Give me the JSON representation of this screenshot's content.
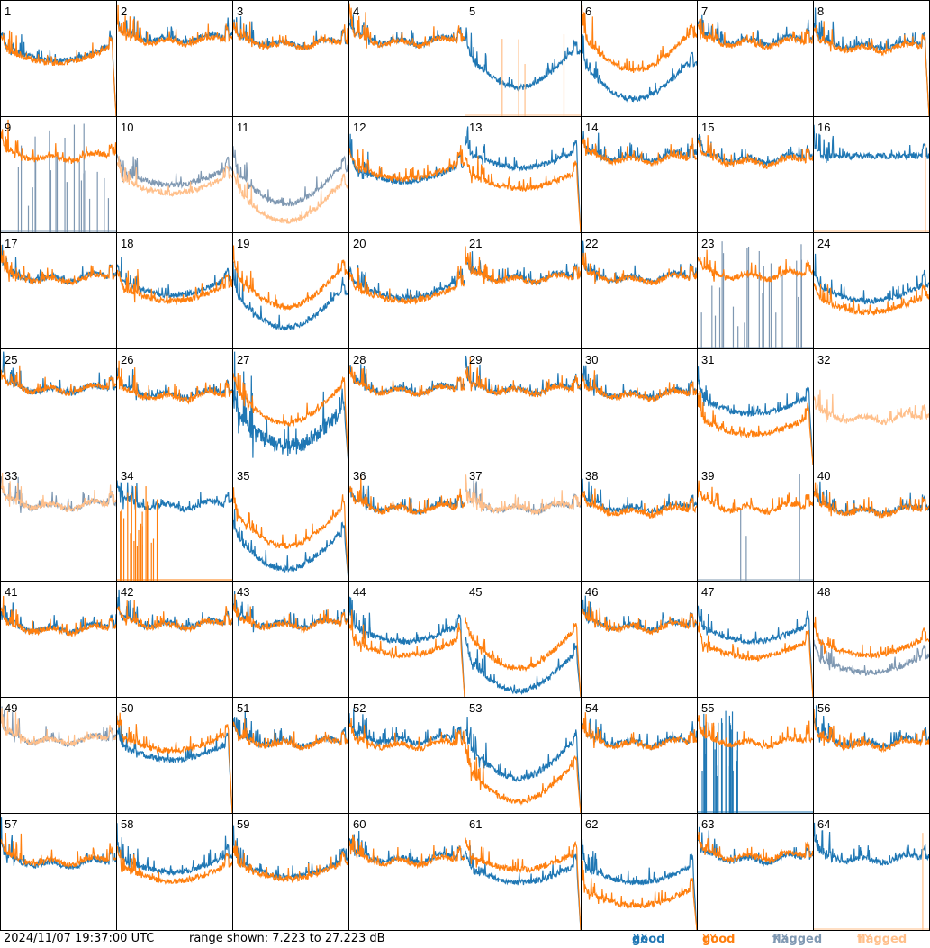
{
  "colors": {
    "good_xx": "#1f77b4",
    "good_yy": "#ff7f0e",
    "flagged_xx": "#7f98b2",
    "flagged_yy": "#ffbf8a",
    "background": "#ffffff",
    "grid_line": "#000000"
  },
  "footer": {
    "timestamp": "2024/11/07 19:37:00 UTC",
    "range_text": "range shown: 7.223 to 27.223 dB"
  },
  "legend": {
    "good": "good",
    "flagged": "flagged",
    "xx": "XX",
    "yy": "YY"
  },
  "chart_data": {
    "type": "line",
    "layout": "8x8 small multiples",
    "range_db": [
      7.223,
      27.223
    ],
    "xlabel": "",
    "ylabel": "",
    "grid": true,
    "series_keys": [
      "XX",
      "YY"
    ],
    "panels": [
      {
        "id": "1",
        "status": "good",
        "shape": "dip",
        "xx_level": 0.62,
        "yy_level": 0.6,
        "end_drop": true
      },
      {
        "id": "2",
        "status": "good",
        "shape": "wavy",
        "xx_level": 0.72,
        "yy_level": 0.7
      },
      {
        "id": "3",
        "status": "good",
        "shape": "wavy",
        "xx_level": 0.68,
        "yy_level": 0.67
      },
      {
        "id": "4",
        "status": "good",
        "shape": "wavy",
        "xx_level": 0.7,
        "yy_level": 0.69
      },
      {
        "id": "5",
        "status": "yy_flagged_spikes",
        "shape": "dip_deep",
        "xx_level": 0.55,
        "yy_level": 0.0
      },
      {
        "id": "6",
        "status": "good",
        "shape": "dip_deep",
        "xx_level": 0.45,
        "yy_level": 0.7
      },
      {
        "id": "7",
        "status": "good",
        "shape": "wavy",
        "xx_level": 0.7,
        "yy_level": 0.68
      },
      {
        "id": "8",
        "status": "good",
        "shape": "wavy",
        "xx_level": 0.66,
        "yy_level": 0.64,
        "end_drop": true
      },
      {
        "id": "9",
        "status": "xx_flagged_spikes",
        "shape": "wavy",
        "xx_level": 0.0,
        "yy_level": 0.7
      },
      {
        "id": "10",
        "status": "flagged",
        "shape": "dip",
        "xx_level": 0.55,
        "yy_level": 0.48
      },
      {
        "id": "11",
        "status": "flagged",
        "shape": "dip_deep",
        "xx_level": 0.55,
        "yy_level": 0.4
      },
      {
        "id": "12",
        "status": "good",
        "shape": "dip",
        "xx_level": 0.58,
        "yy_level": 0.6
      },
      {
        "id": "13",
        "status": "good",
        "shape": "dip",
        "xx_level": 0.7,
        "yy_level": 0.52,
        "end_drop": true
      },
      {
        "id": "14",
        "status": "good",
        "shape": "wavy",
        "xx_level": 0.7,
        "yy_level": 0.68
      },
      {
        "id": "15",
        "status": "good",
        "shape": "wavy",
        "xx_level": 0.68,
        "yy_level": 0.66
      },
      {
        "id": "16",
        "status": "yy_flagged_spike",
        "shape": "flat",
        "xx_level": 0.66,
        "yy_level": 0.0
      },
      {
        "id": "17",
        "status": "good",
        "shape": "wavy",
        "xx_level": 0.66,
        "yy_level": 0.65
      },
      {
        "id": "18",
        "status": "good",
        "shape": "dip",
        "xx_level": 0.6,
        "yy_level": 0.55
      },
      {
        "id": "19",
        "status": "good",
        "shape": "dip_deep",
        "xx_level": 0.48,
        "yy_level": 0.66
      },
      {
        "id": "20",
        "status": "good",
        "shape": "dip",
        "xx_level": 0.58,
        "yy_level": 0.55
      },
      {
        "id": "21",
        "status": "good",
        "shape": "wavy",
        "xx_level": 0.66,
        "yy_level": 0.65
      },
      {
        "id": "22",
        "status": "good",
        "shape": "wavy",
        "xx_level": 0.66,
        "yy_level": 0.65
      },
      {
        "id": "23",
        "status": "xx_flagged_spikes",
        "shape": "wavy",
        "xx_level": 0.0,
        "yy_level": 0.68
      },
      {
        "id": "24",
        "status": "good",
        "shape": "dip",
        "xx_level": 0.55,
        "yy_level": 0.45
      },
      {
        "id": "25",
        "status": "good",
        "shape": "wavy",
        "xx_level": 0.7,
        "yy_level": 0.7
      },
      {
        "id": "26",
        "status": "good",
        "shape": "wavy",
        "xx_level": 0.66,
        "yy_level": 0.64
      },
      {
        "id": "27",
        "status": "xx_noisy",
        "shape": "dip_deep",
        "xx_level": 0.45,
        "yy_level": 0.66,
        "end_drop": true
      },
      {
        "id": "28",
        "status": "good",
        "shape": "wavy",
        "xx_level": 0.7,
        "yy_level": 0.69
      },
      {
        "id": "29",
        "status": "good",
        "shape": "wavy",
        "xx_level": 0.7,
        "yy_level": 0.69
      },
      {
        "id": "30",
        "status": "good",
        "shape": "wavy",
        "xx_level": 0.66,
        "yy_level": 0.65
      },
      {
        "id": "31",
        "status": "good",
        "shape": "dip",
        "xx_level": 0.58,
        "yy_level": 0.4,
        "end_drop": true
      },
      {
        "id": "32",
        "status": "flagged",
        "shape": "wavy",
        "xx_level": 0.0,
        "yy_level": 0.45
      },
      {
        "id": "33",
        "status": "flagged",
        "shape": "wavy",
        "xx_level": 0.7,
        "yy_level": 0.7
      },
      {
        "id": "34",
        "status": "yy_noisy",
        "shape": "wavy",
        "xx_level": 0.7,
        "yy_level": 0.0
      },
      {
        "id": "35",
        "status": "good",
        "shape": "dip_deep",
        "xx_level": 0.4,
        "yy_level": 0.6,
        "end_drop": true
      },
      {
        "id": "36",
        "status": "good",
        "shape": "wavy",
        "xx_level": 0.68,
        "yy_level": 0.67
      },
      {
        "id": "37",
        "status": "flagged",
        "shape": "wavy",
        "xx_level": 0.68,
        "yy_level": 0.68
      },
      {
        "id": "38",
        "status": "good",
        "shape": "wavy",
        "xx_level": 0.68,
        "yy_level": 0.65
      },
      {
        "id": "39",
        "status": "xx_flagged_spike",
        "shape": "wavy",
        "xx_level": 0.0,
        "yy_level": 0.68
      },
      {
        "id": "40",
        "status": "good",
        "shape": "wavy",
        "xx_level": 0.66,
        "yy_level": 0.65
      },
      {
        "id": "41",
        "status": "good",
        "shape": "wavy",
        "xx_level": 0.64,
        "yy_level": 0.63
      },
      {
        "id": "42",
        "status": "good",
        "shape": "wavy",
        "xx_level": 0.68,
        "yy_level": 0.67
      },
      {
        "id": "43",
        "status": "good",
        "shape": "wavy",
        "xx_level": 0.68,
        "yy_level": 0.67
      },
      {
        "id": "44",
        "status": "good",
        "shape": "dip",
        "xx_level": 0.62,
        "yy_level": 0.5,
        "end_drop": true
      },
      {
        "id": "45",
        "status": "good",
        "shape": "dip_deep",
        "xx_level": 0.35,
        "yy_level": 0.55,
        "end_drop": true
      },
      {
        "id": "46",
        "status": "good",
        "shape": "wavy",
        "xx_level": 0.66,
        "yy_level": 0.65
      },
      {
        "id": "47",
        "status": "good",
        "shape": "dip",
        "xx_level": 0.62,
        "yy_level": 0.48,
        "end_drop": true
      },
      {
        "id": "48",
        "status": "xx_flagged",
        "shape": "dip",
        "xx_level": 0.35,
        "yy_level": 0.5
      },
      {
        "id": "49",
        "status": "flagged",
        "shape": "wavy",
        "xx_level": 0.68,
        "yy_level": 0.68
      },
      {
        "id": "50",
        "status": "good",
        "shape": "dip",
        "xx_level": 0.6,
        "yy_level": 0.68,
        "end_drop": true
      },
      {
        "id": "51",
        "status": "good",
        "shape": "wavy",
        "xx_level": 0.66,
        "yy_level": 0.65
      },
      {
        "id": "52",
        "status": "good",
        "shape": "wavy",
        "xx_level": 0.68,
        "yy_level": 0.64
      },
      {
        "id": "53",
        "status": "good",
        "shape": "dip_deep",
        "xx_level": 0.6,
        "yy_level": 0.4,
        "end_drop": true
      },
      {
        "id": "54",
        "status": "good",
        "shape": "wavy",
        "xx_level": 0.66,
        "yy_level": 0.65
      },
      {
        "id": "55",
        "status": "xx_noisy",
        "shape": "wavy",
        "xx_level": 0.0,
        "yy_level": 0.66
      },
      {
        "id": "56",
        "status": "good",
        "shape": "wavy",
        "xx_level": 0.66,
        "yy_level": 0.64
      },
      {
        "id": "57",
        "status": "good",
        "shape": "wavy",
        "xx_level": 0.62,
        "yy_level": 0.64
      },
      {
        "id": "58",
        "status": "good",
        "shape": "dip",
        "xx_level": 0.64,
        "yy_level": 0.56
      },
      {
        "id": "59",
        "status": "good",
        "shape": "dip",
        "xx_level": 0.6,
        "yy_level": 0.58
      },
      {
        "id": "60",
        "status": "good",
        "shape": "wavy",
        "xx_level": 0.66,
        "yy_level": 0.64
      },
      {
        "id": "61",
        "status": "good",
        "shape": "dip",
        "xx_level": 0.55,
        "yy_level": 0.66,
        "end_drop": true
      },
      {
        "id": "62",
        "status": "good",
        "shape": "dip",
        "xx_level": 0.55,
        "yy_level": 0.35,
        "end_drop": true
      },
      {
        "id": "63",
        "status": "good",
        "shape": "wavy",
        "xx_level": 0.66,
        "yy_level": 0.68
      },
      {
        "id": "64",
        "status": "yy_flagged_spike",
        "shape": "wavy",
        "xx_level": 0.66,
        "yy_level": 0.0
      }
    ]
  }
}
